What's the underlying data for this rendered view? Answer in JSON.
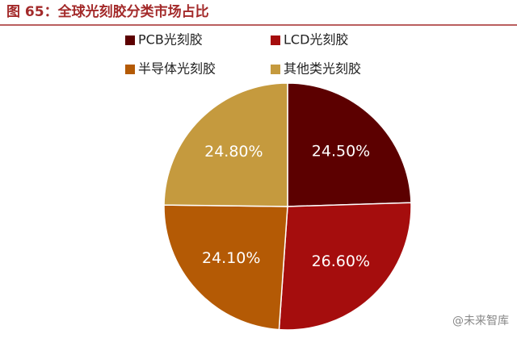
{
  "chart_data": {
    "type": "pie",
    "title": "图 65：全球光刻胶分类市场占比",
    "categories": [
      "PCB光刻胶",
      "LCD光刻胶",
      "半导体光刻胶",
      "其他类光刻胶"
    ],
    "values": [
      24.5,
      26.6,
      24.1,
      24.8
    ],
    "value_labels": [
      "24.50%",
      "26.60%",
      "24.10%",
      "24.80%"
    ],
    "colors": [
      "#5c0000",
      "#a50d0d",
      "#b45a05",
      "#c59a3e"
    ],
    "watermark": "@未来智库"
  }
}
